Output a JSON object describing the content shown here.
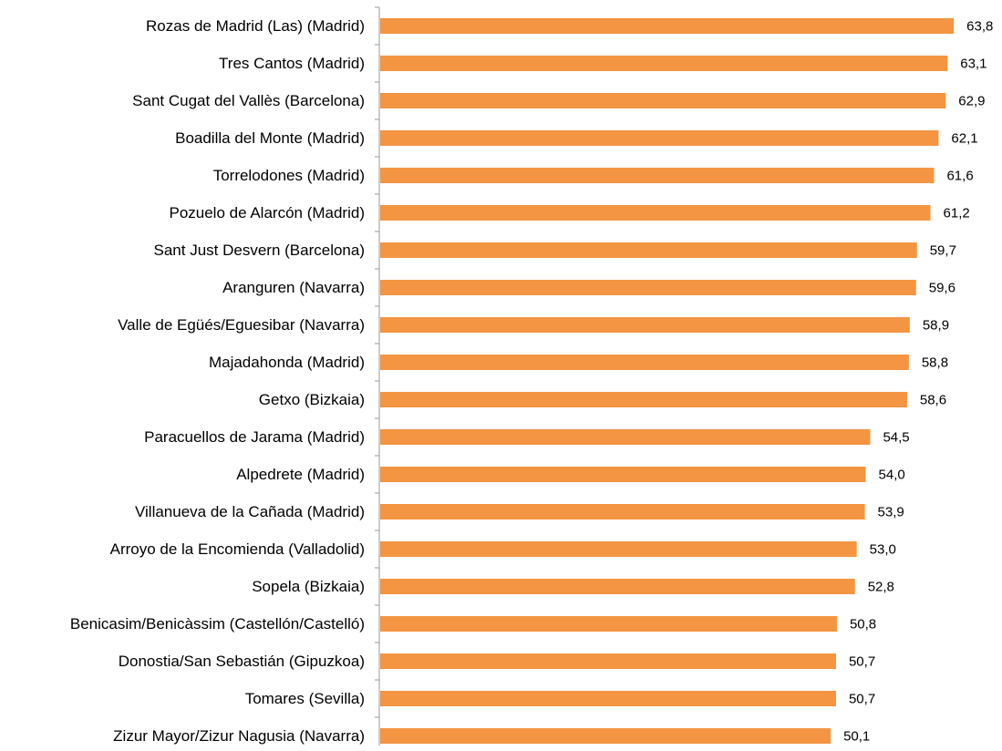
{
  "chart_data": {
    "type": "bar",
    "orientation": "horizontal",
    "categories": [
      "Rozas de Madrid (Las) (Madrid)",
      "Tres Cantos (Madrid)",
      "Sant Cugat del Vallès (Barcelona)",
      "Boadilla del Monte (Madrid)",
      "Torrelodones (Madrid)",
      "Pozuelo de Alarcón (Madrid)",
      "Sant Just Desvern (Barcelona)",
      "Aranguren (Navarra)",
      "Valle de Egüés/Eguesibar (Navarra)",
      "Majadahonda (Madrid)",
      "Getxo (Bizkaia)",
      "Paracuellos de Jarama (Madrid)",
      "Alpedrete (Madrid)",
      "Villanueva de la Cañada (Madrid)",
      "Arroyo de la Encomienda (Valladolid)",
      "Sopela (Bizkaia)",
      "Benicasim/Benicàssim (Castellón/Castelló)",
      "Donostia/San Sebastián (Gipuzkoa)",
      "Tomares (Sevilla)",
      "Zizur Mayor/Zizur Nagusia (Navarra)"
    ],
    "values": [
      63.8,
      63.1,
      62.9,
      62.1,
      61.6,
      61.2,
      59.7,
      59.6,
      58.9,
      58.8,
      58.6,
      54.5,
      54.0,
      53.9,
      53.0,
      52.8,
      50.8,
      50.7,
      50.7,
      50.1
    ],
    "value_labels": [
      "63,8",
      "63,1",
      "62,9",
      "62,1",
      "61,6",
      "61,2",
      "59,7",
      "59,6",
      "58,9",
      "58,8",
      "58,6",
      "54,5",
      "54,0",
      "53,9",
      "53,0",
      "52,8",
      "50,8",
      "50,7",
      "50,7",
      "50,1"
    ],
    "color": "#f39543",
    "xlim": [
      0,
      65
    ]
  }
}
